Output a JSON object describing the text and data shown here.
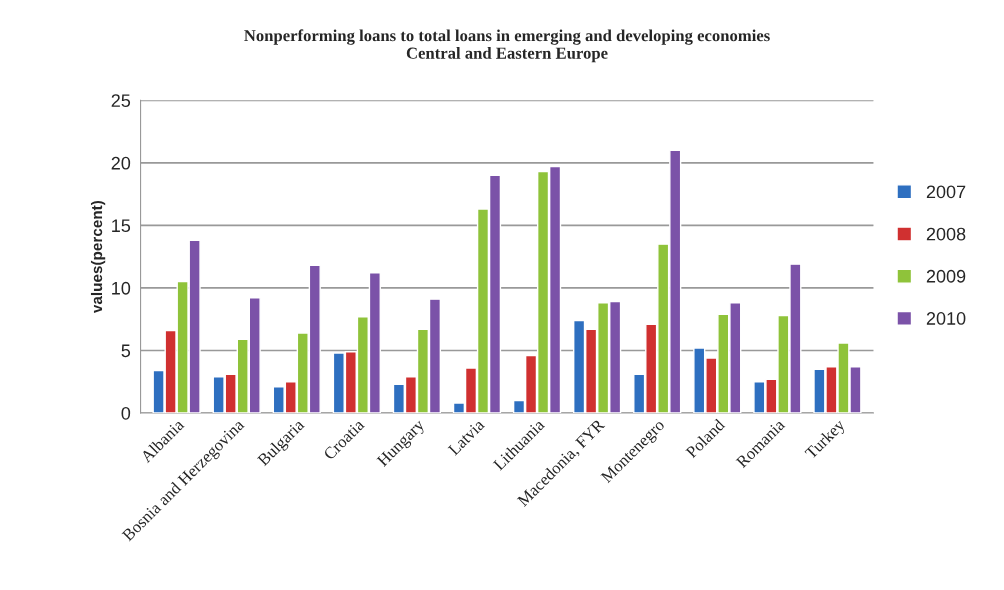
{
  "chart_data": {
    "type": "bar",
    "title": "Nonperforming loans to total loans in emerging and developing economies\nCentral and Eastern Europe",
    "ylabel": "values(percent)",
    "categories": [
      "Albania",
      "Bosnia and Herzegovina",
      "Bulgaria",
      "Croatia",
      "Hungary",
      "Latvia",
      "Lithuania",
      "Macedonia, FYR",
      "Montenegro",
      "Poland",
      "Romania",
      "Turkey"
    ],
    "series": [
      {
        "name": "2007",
        "color": "#2e6fc0",
        "values": [
          3.4,
          2.9,
          2.1,
          4.8,
          2.3,
          0.8,
          1.0,
          7.4,
          3.1,
          5.2,
          2.5,
          3.5
        ]
      },
      {
        "name": "2008",
        "color": "#d03030",
        "values": [
          6.6,
          3.1,
          2.5,
          4.9,
          2.9,
          3.6,
          4.6,
          6.7,
          7.1,
          4.4,
          2.7,
          3.7
        ]
      },
      {
        "name": "2009",
        "color": "#8fc33a",
        "values": [
          10.5,
          5.9,
          6.4,
          7.7,
          6.7,
          16.3,
          19.3,
          8.8,
          13.5,
          7.9,
          7.8,
          5.6
        ]
      },
      {
        "name": "2010",
        "color": "#7b52a8",
        "values": [
          13.8,
          9.2,
          11.8,
          11.2,
          9.1,
          19.0,
          19.7,
          8.9,
          21.0,
          8.8,
          11.9,
          3.7
        ]
      }
    ],
    "ylim": [
      0,
      25
    ],
    "yticks": [
      0,
      5,
      10,
      15,
      20,
      25
    ],
    "grid": "y",
    "legend": "right"
  }
}
